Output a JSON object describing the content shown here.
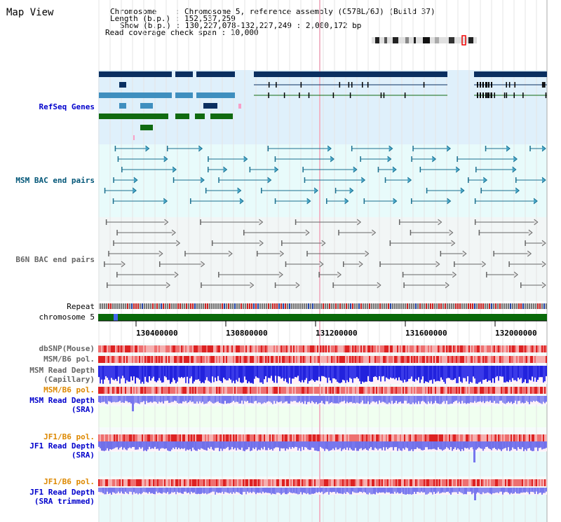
{
  "title": "Map View",
  "info": {
    "chromosome_key": "Chromosome",
    "chromosome_val": "Chromosome 5, reference assembly (C57BL/6J) (Build 37)",
    "length_key": "Length (b.p.)",
    "length_val": "152,537,259",
    "show_key": "Show (b.p.)",
    "show_val": "130,227,078-132,227,249 : 2,000,172 bp",
    "coverage_key": "Read coverage check span",
    "coverage_val": "10,000"
  },
  "tracks": {
    "refseq": "RefSeq Genes",
    "msm_bac": "MSM BAC end pairs",
    "b6n_bac": "B6N BAC end pairs",
    "repeat": "Repeat",
    "chromosome": "chromosome 5",
    "dbsnp": "dbSNP(Mouse)",
    "msm_b6_pol": "MSM/B6 pol.",
    "msm_read_depth_cap_1": "MSM Read Depth",
    "msm_read_depth_cap_2": "(Capillary)",
    "msm_b6_pol_2": "MSM/B6 pol.",
    "msm_read_depth_sra_1": "MSM Read Depth",
    "msm_read_depth_sra_2": "(SRA)",
    "jf1_b6_pol": "JF1/B6 pol.",
    "jf1_read_depth_sra_1": "JF1 Read Depth",
    "jf1_read_depth_sra_2": "(SRA)",
    "jf1_b6_pol_2": "JF1/B6 pol.",
    "jf1_read_depth_trim_1": "JF1 Read Depth",
    "jf1_read_depth_trim_2": "(SRA trimmed)"
  },
  "axis": {
    "ticks": [
      "130400000",
      "130800000",
      "131200000",
      "131600000",
      "132000000"
    ]
  },
  "colors": {
    "refseq_bg": "#dff0fb",
    "bac_bg": "#e8fbfb",
    "b6n_bg": "#f2f6f6",
    "gene_dark": "#0a2f60",
    "gene_mid": "#3f8fbf",
    "gene_green": "#106a10",
    "chromosome_green": "#0a6a0a",
    "depth_blue": "#2222dd",
    "depth_light": "#7777ee",
    "pol_red": "#ee3333"
  }
}
